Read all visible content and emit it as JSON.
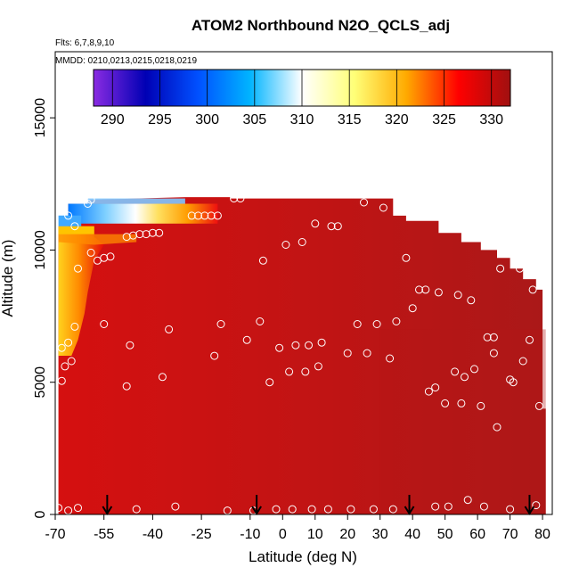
{
  "chart_data": {
    "type": "heatmap",
    "title": "ATOM2 Northbound N2O_QCLS_adj",
    "subtitle_flights": "Flts: 6,7,8,9,10",
    "subtitle_dates": "MMDD: 0210,0213,0215,0218,0219",
    "xlabel": "Latitude (deg N)",
    "ylabel": "Altitude (m)",
    "xlim": [
      -70,
      83
    ],
    "ylim": [
      0,
      17500
    ],
    "x_ticks": [
      -70,
      -55,
      -40,
      -25,
      -10,
      0,
      10,
      20,
      30,
      40,
      50,
      60,
      70,
      80
    ],
    "y_ticks": [
      0,
      5000,
      10000,
      15000
    ],
    "colorbar": {
      "range": [
        288,
        332
      ],
      "ticks": [
        290,
        295,
        300,
        305,
        310,
        315,
        320,
        325,
        330
      ],
      "colors": [
        "#8a2be2",
        "#0000b4",
        "#0050ff",
        "#00b4ff",
        "#ffffff",
        "#ffff78",
        "#ffaa00",
        "#ff0000",
        "#a01010"
      ]
    },
    "profile_markers_lat": [
      -54,
      -8,
      39,
      76
    ],
    "samples": [
      [
        -69,
        250
      ],
      [
        -68,
        5050
      ],
      [
        -68,
        6300
      ],
      [
        -67,
        5600
      ],
      [
        -66,
        6500
      ],
      [
        -65,
        5800
      ],
      [
        -64,
        7100
      ],
      [
        -63,
        9300
      ],
      [
        -68,
        11800
      ],
      [
        -66,
        11300
      ],
      [
        -64,
        10900
      ],
      [
        -59,
        11900
      ],
      [
        -60,
        11750
      ],
      [
        -66,
        150
      ],
      [
        -63,
        250
      ],
      [
        -59,
        9900
      ],
      [
        -57,
        9600
      ],
      [
        -55,
        9700
      ],
      [
        -53,
        9750
      ],
      [
        -55,
        7200
      ],
      [
        -48,
        10500
      ],
      [
        -46,
        10550
      ],
      [
        -44,
        10600
      ],
      [
        -42,
        10600
      ],
      [
        -40,
        10650
      ],
      [
        -38,
        10650
      ],
      [
        -48,
        4850
      ],
      [
        -47,
        6400
      ],
      [
        -45,
        200
      ],
      [
        -37,
        5200
      ],
      [
        -35,
        7000
      ],
      [
        -33,
        300
      ],
      [
        -28,
        11300
      ],
      [
        -26,
        11300
      ],
      [
        -24,
        11300
      ],
      [
        -22,
        11300
      ],
      [
        -20,
        11300
      ],
      [
        -21,
        6000
      ],
      [
        -19,
        7200
      ],
      [
        -17,
        150
      ],
      [
        -15,
        11950
      ],
      [
        -13,
        11950
      ],
      [
        -11,
        6600
      ],
      [
        -9,
        150
      ],
      [
        -7,
        7300
      ],
      [
        -6,
        9600
      ],
      [
        -4,
        5000
      ],
      [
        -2,
        200
      ],
      [
        -1,
        6300
      ],
      [
        1,
        10200
      ],
      [
        2,
        5400
      ],
      [
        3,
        200
      ],
      [
        4,
        6400
      ],
      [
        6,
        10300
      ],
      [
        7,
        5400
      ],
      [
        8,
        6400
      ],
      [
        9,
        200
      ],
      [
        10,
        11000
      ],
      [
        11,
        5600
      ],
      [
        12,
        6500
      ],
      [
        14,
        200
      ],
      [
        15,
        10900
      ],
      [
        17,
        10900
      ],
      [
        20,
        6100
      ],
      [
        21,
        200
      ],
      [
        23,
        7200
      ],
      [
        25,
        11800
      ],
      [
        26,
        6100
      ],
      [
        28,
        200
      ],
      [
        29,
        7200
      ],
      [
        31,
        11600
      ],
      [
        33,
        5900
      ],
      [
        34,
        200
      ],
      [
        35,
        7300
      ],
      [
        37,
        11900
      ],
      [
        38,
        9700
      ],
      [
        40,
        7800
      ],
      [
        42,
        8500
      ],
      [
        44,
        8500
      ],
      [
        45,
        4650
      ],
      [
        47,
        300
      ],
      [
        47,
        4800
      ],
      [
        48,
        8400
      ],
      [
        50,
        4200
      ],
      [
        51,
        300
      ],
      [
        53,
        5400
      ],
      [
        54,
        8300
      ],
      [
        55,
        4200
      ],
      [
        56,
        5200
      ],
      [
        57,
        550
      ],
      [
        58,
        8100
      ],
      [
        59,
        5500
      ],
      [
        61,
        4100
      ],
      [
        62,
        300
      ],
      [
        63,
        6700
      ],
      [
        65,
        6700
      ],
      [
        65,
        6100
      ],
      [
        66,
        3300
      ],
      [
        67,
        9300
      ],
      [
        70,
        200
      ],
      [
        70,
        5100
      ],
      [
        71,
        5000
      ],
      [
        73,
        9300
      ],
      [
        74,
        5800
      ],
      [
        76,
        6600
      ],
      [
        77,
        8500
      ],
      [
        78,
        350
      ],
      [
        79,
        4100
      ]
    ]
  }
}
